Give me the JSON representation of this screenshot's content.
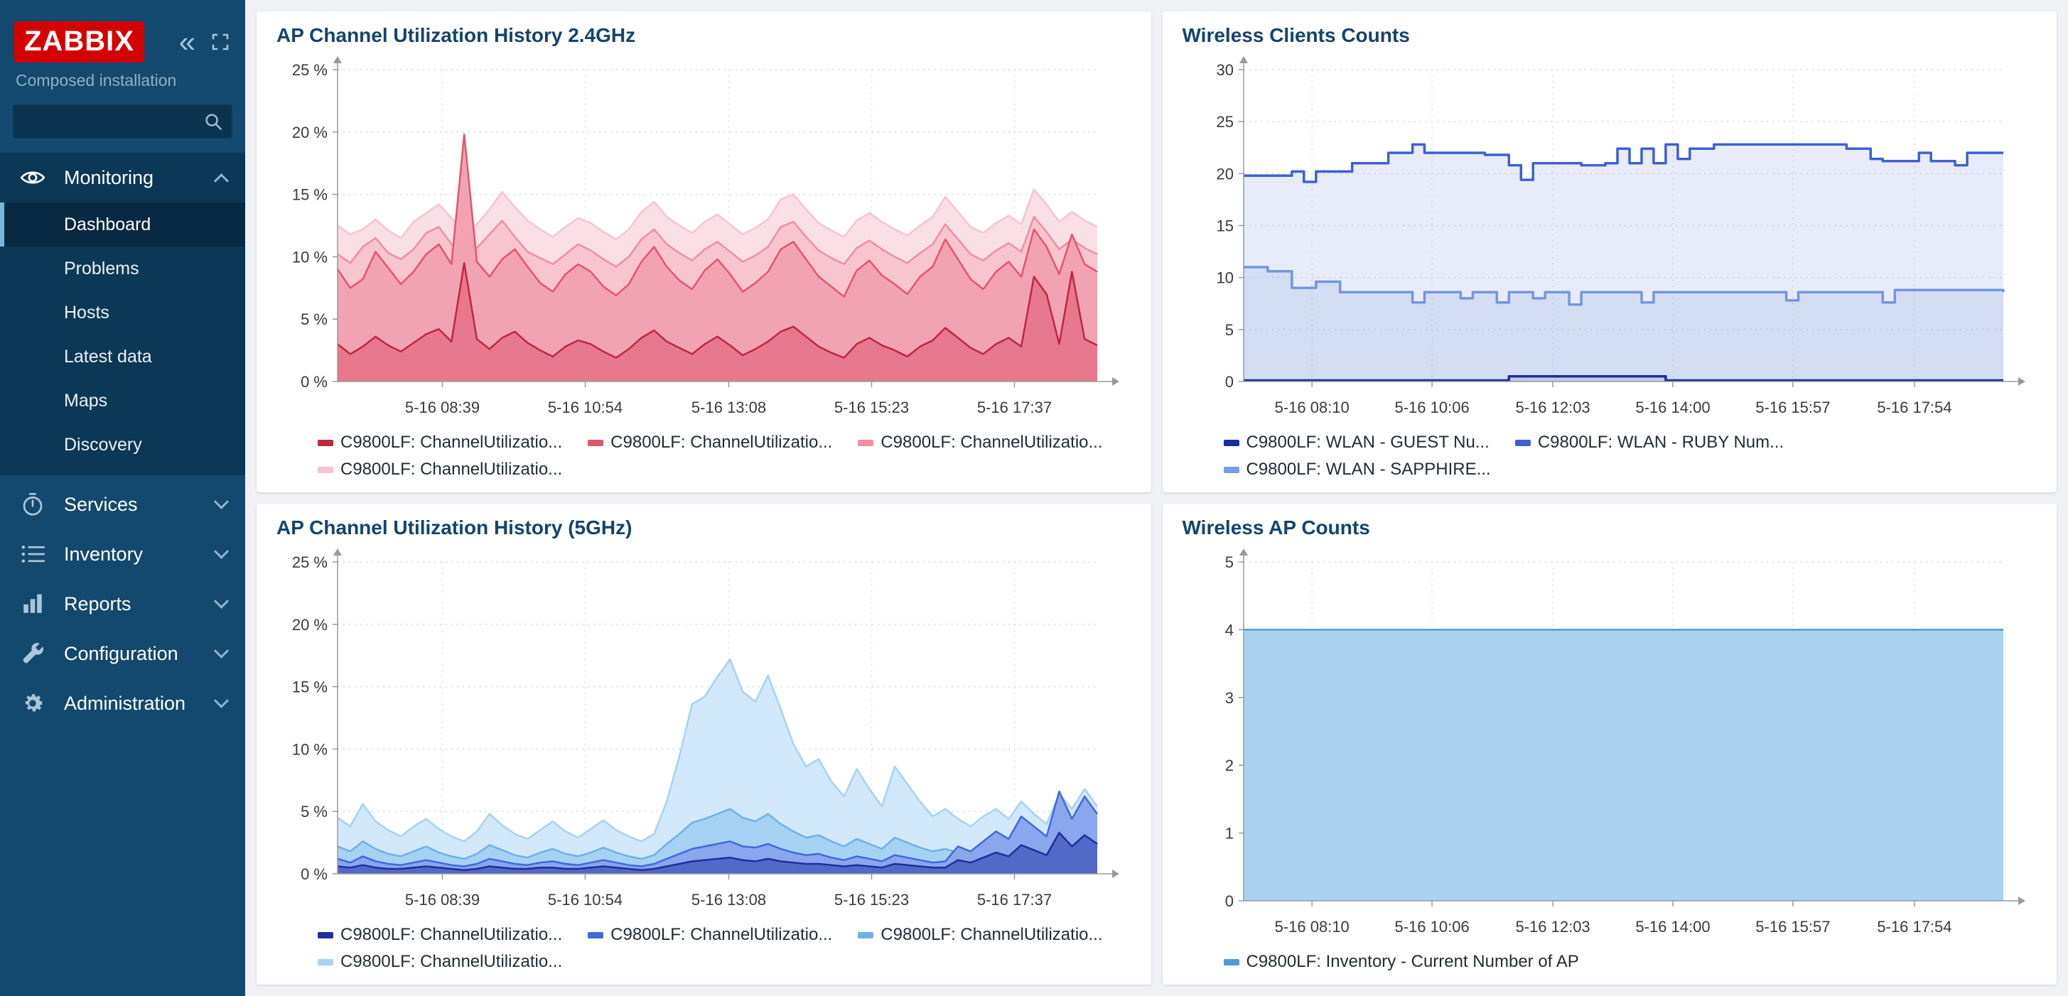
{
  "sidebar": {
    "logo": "ZABBIX",
    "subtitle": "Composed installation",
    "search": {
      "value": "",
      "placeholder": ""
    },
    "menu": [
      {
        "label": "Monitoring",
        "icon": "eye-icon",
        "expanded": true,
        "items": [
          {
            "label": "Dashboard",
            "active": true
          },
          {
            "label": "Problems",
            "active": false
          },
          {
            "label": "Hosts",
            "active": false
          },
          {
            "label": "Latest data",
            "active": false
          },
          {
            "label": "Maps",
            "active": false
          },
          {
            "label": "Discovery",
            "active": false
          }
        ]
      },
      {
        "label": "Services",
        "icon": "services-icon",
        "expanded": false
      },
      {
        "label": "Inventory",
        "icon": "inventory-icon",
        "expanded": false
      },
      {
        "label": "Reports",
        "icon": "reports-icon",
        "expanded": false
      },
      {
        "label": "Configuration",
        "icon": "configuration-icon",
        "expanded": false
      },
      {
        "label": "Administration",
        "icon": "administration-icon",
        "expanded": false
      }
    ]
  },
  "colors": {
    "sidebar_bg": "#13496e",
    "sidebar_group_bg": "#0c3857",
    "sidebar_active_bg": "#072a42",
    "logo_red": "#d40000",
    "widget_title": "#16436e",
    "main_bg": "#eff1f4"
  },
  "chart_data": [
    {
      "type": "area",
      "title": "AP Channel Utilization History 2.4GHz",
      "ylim": [
        0,
        25
      ],
      "yticks": [
        0,
        5,
        10,
        15,
        20,
        25
      ],
      "y_suffix": " %",
      "grid": true,
      "legend_position": "bottom",
      "xticks": [
        {
          "label": "5-16 08:39",
          "pos": 0.138
        },
        {
          "label": "5-16 10:54",
          "pos": 0.326
        },
        {
          "label": "5-16 13:08",
          "pos": 0.515
        },
        {
          "label": "5-16 15:23",
          "pos": 0.703
        },
        {
          "label": "5-16 17:37",
          "pos": 0.891
        }
      ],
      "series": [
        {
          "name": "C9800LF: ChannelUtilizatio...",
          "color": "#bd2841",
          "fill": "#e8788e",
          "fill_opacity": 1,
          "values": [
            3.0,
            2.2,
            2.8,
            3.6,
            2.9,
            2.4,
            3.1,
            3.8,
            4.2,
            3.2,
            9.5,
            3.4,
            2.6,
            3.5,
            4.0,
            3.1,
            2.5,
            2.0,
            2.8,
            3.3,
            3.0,
            2.4,
            1.9,
            2.6,
            3.5,
            4.1,
            3.2,
            2.7,
            2.2,
            3.0,
            3.6,
            2.9,
            2.1,
            2.6,
            3.2,
            4.0,
            4.4,
            3.6,
            2.8,
            2.3,
            1.9,
            3.0,
            3.5,
            2.9,
            2.5,
            2.0,
            2.8,
            3.3,
            4.3,
            3.5,
            2.7,
            2.2,
            3.0,
            3.5,
            2.8,
            8.4,
            7.0,
            3.0,
            8.8,
            3.4,
            2.9
          ]
        },
        {
          "name": "C9800LF: ChannelUtilizatio...",
          "color": "#e4556d",
          "fill": "#f2a3b3",
          "fill_opacity": 1,
          "values": [
            9.0,
            7.5,
            8.2,
            10.4,
            9.1,
            7.8,
            8.8,
            10.2,
            11.0,
            9.4,
            19.8,
            9.6,
            8.4,
            9.8,
            10.6,
            9.2,
            7.9,
            7.2,
            8.6,
            9.4,
            8.8,
            7.6,
            6.9,
            7.8,
            9.6,
            10.8,
            9.2,
            8.1,
            7.4,
            8.9,
            9.8,
            8.6,
            7.2,
            7.9,
            8.8,
            10.6,
            11.2,
            9.8,
            8.4,
            7.6,
            6.8,
            8.9,
            9.7,
            8.5,
            7.8,
            7.0,
            8.4,
            9.2,
            11.4,
            9.8,
            8.2,
            7.4,
            8.8,
            9.6,
            8.4,
            12.2,
            10.8,
            8.6,
            11.8,
            9.4,
            8.8
          ]
        },
        {
          "name": "C9800LF: ChannelUtilizatio...",
          "color": "#ef8fa1",
          "fill": "#f7c4cf",
          "fill_opacity": 1,
          "values": [
            10.2,
            9.5,
            10.8,
            11.5,
            10.3,
            9.8,
            10.6,
            11.9,
            12.4,
            11.0,
            10.1,
            10.7,
            11.8,
            12.9,
            11.6,
            10.4,
            9.9,
            9.4,
            10.2,
            11.0,
            10.5,
            9.8,
            9.2,
            10.0,
            11.4,
            12.2,
            11.0,
            10.3,
            9.7,
            10.6,
            11.2,
            10.4,
            9.6,
            10.1,
            10.8,
            12.4,
            12.8,
            11.6,
            10.5,
            9.9,
            9.4,
            10.7,
            11.3,
            10.6,
            10.0,
            9.5,
            10.3,
            11.0,
            12.6,
            11.4,
            10.2,
            9.7,
            10.5,
            11.1,
            10.4,
            13.2,
            12.0,
            10.6,
            11.4,
            10.7,
            10.2
          ]
        },
        {
          "name": "C9800LF: ChannelUtilizatio...",
          "color": "#f6c4d1",
          "fill": "#fbdfe7",
          "fill_opacity": 1,
          "values": [
            12.5,
            11.8,
            12.2,
            13.0,
            12.1,
            11.5,
            12.8,
            13.5,
            14.2,
            13.1,
            12.0,
            12.6,
            13.8,
            15.2,
            14.0,
            12.9,
            12.2,
            11.6,
            12.4,
            13.1,
            12.7,
            12.0,
            11.4,
            12.2,
            13.6,
            14.4,
            13.2,
            12.5,
            11.9,
            12.8,
            13.4,
            12.6,
            11.8,
            12.3,
            13.0,
            14.6,
            15.0,
            13.8,
            12.7,
            12.1,
            11.6,
            12.9,
            13.5,
            12.8,
            12.2,
            11.7,
            12.5,
            13.2,
            14.8,
            13.6,
            12.4,
            11.9,
            12.7,
            13.3,
            12.6,
            15.4,
            14.2,
            12.8,
            13.6,
            12.9,
            12.4
          ]
        }
      ]
    },
    {
      "type": "line",
      "step": true,
      "title": "Wireless Clients Counts",
      "ylim": [
        0,
        30
      ],
      "yticks": [
        0,
        5,
        10,
        15,
        20,
        25,
        30
      ],
      "y_suffix": "",
      "grid": true,
      "legend_position": "bottom",
      "xticks": [
        {
          "label": "5-16 08:10",
          "pos": 0.09
        },
        {
          "label": "5-16 10:06",
          "pos": 0.248
        },
        {
          "label": "5-16 12:03",
          "pos": 0.407
        },
        {
          "label": "5-16 14:00",
          "pos": 0.565
        },
        {
          "label": "5-16 15:57",
          "pos": 0.723
        },
        {
          "label": "5-16 17:54",
          "pos": 0.883
        }
      ],
      "series": [
        {
          "name": "C9800LF: WLAN - GUEST Nu...",
          "color": "#1a2f9c",
          "fill": "#1a2f9c",
          "fill_opacity": 0.1,
          "values": [
            0.1,
            0.1,
            0.1,
            0.1,
            0.1,
            0.1,
            0.1,
            0.1,
            0.1,
            0.1,
            0.1,
            0.1,
            0.1,
            0.1,
            0.1,
            0.1,
            0.1,
            0.1,
            0.1,
            0.1,
            0.1,
            0.1,
            0.5,
            0.5,
            0.5,
            0.5,
            0.5,
            0.5,
            0.5,
            0.5,
            0.5,
            0.5,
            0.5,
            0.5,
            0.5,
            0.1,
            0.1,
            0.1,
            0.1,
            0.1,
            0.1,
            0.1,
            0.1,
            0.1,
            0.1,
            0.1,
            0.1,
            0.1,
            0.1,
            0.1,
            0.1,
            0.1,
            0.1,
            0.1,
            0.1,
            0.1,
            0.1,
            0.1,
            0.1,
            0.1,
            0.1,
            0.1,
            0.1,
            0.1
          ]
        },
        {
          "name": "C9800LF: WLAN - RUBY Num...",
          "color": "#3f5fd6",
          "fill": "#3f5fd6",
          "fill_opacity": 0.12,
          "values": [
            19.8,
            19.8,
            19.8,
            19.8,
            20.2,
            19.2,
            20.2,
            20.2,
            20.2,
            21.0,
            21.0,
            21.0,
            22.0,
            22.0,
            22.8,
            22.0,
            22.0,
            22.0,
            22.0,
            22.0,
            21.8,
            21.8,
            20.8,
            19.4,
            21.0,
            21.0,
            21.0,
            21.0,
            20.8,
            20.8,
            21.0,
            22.4,
            21.0,
            22.4,
            21.0,
            22.8,
            21.4,
            22.4,
            22.4,
            22.8,
            22.8,
            22.8,
            22.8,
            22.8,
            22.8,
            22.8,
            22.8,
            22.8,
            22.8,
            22.8,
            22.4,
            22.4,
            21.4,
            21.2,
            21.2,
            21.2,
            22.0,
            21.2,
            21.2,
            20.8,
            22.0,
            22.0,
            22.0,
            22.0
          ]
        },
        {
          "name": "C9800LF: WLAN - SAPPHIRE...",
          "color": "#7b9fe0",
          "fill": "#7b9fe0",
          "fill_opacity": 0.18,
          "values": [
            11.0,
            11.0,
            10.6,
            10.6,
            9.0,
            9.0,
            9.6,
            9.6,
            8.6,
            8.6,
            8.6,
            8.6,
            8.6,
            8.6,
            7.6,
            8.6,
            8.6,
            8.6,
            8.0,
            8.6,
            8.6,
            7.6,
            8.6,
            8.6,
            8.0,
            8.6,
            8.6,
            7.4,
            8.6,
            8.6,
            8.6,
            8.6,
            8.6,
            7.6,
            8.6,
            8.6,
            8.6,
            8.6,
            8.6,
            8.6,
            8.6,
            8.6,
            8.6,
            8.6,
            8.6,
            7.8,
            8.6,
            8.6,
            8.6,
            8.6,
            8.6,
            8.6,
            8.6,
            7.6,
            8.8,
            8.8,
            8.8,
            8.8,
            8.8,
            8.8,
            8.8,
            8.8,
            8.8,
            8.6
          ]
        }
      ]
    },
    {
      "type": "area",
      "title": "AP Channel Utilization History (5GHz)",
      "ylim": [
        0,
        25
      ],
      "yticks": [
        0,
        5,
        10,
        15,
        20,
        25
      ],
      "y_suffix": " %",
      "grid": true,
      "legend_position": "bottom",
      "xticks": [
        {
          "label": "5-16 08:39",
          "pos": 0.138
        },
        {
          "label": "5-16 10:54",
          "pos": 0.326
        },
        {
          "label": "5-16 13:08",
          "pos": 0.515
        },
        {
          "label": "5-16 15:23",
          "pos": 0.703
        },
        {
          "label": "5-16 17:37",
          "pos": 0.891
        }
      ],
      "series": [
        {
          "name": "C9800LF: ChannelUtilizatio...",
          "color": "#1d2f9e",
          "fill": "#5468c8",
          "fill_opacity": 1,
          "values": [
            0.6,
            0.5,
            0.7,
            0.5,
            0.4,
            0.4,
            0.5,
            0.6,
            0.5,
            0.4,
            0.3,
            0.4,
            0.6,
            0.5,
            0.4,
            0.4,
            0.5,
            0.5,
            0.4,
            0.4,
            0.5,
            0.6,
            0.5,
            0.4,
            0.3,
            0.4,
            0.6,
            0.8,
            1.0,
            1.1,
            1.2,
            1.3,
            1.1,
            1.0,
            1.2,
            1.0,
            0.9,
            0.8,
            0.8,
            0.7,
            0.6,
            0.7,
            0.6,
            0.5,
            0.8,
            0.7,
            0.6,
            0.5,
            0.5,
            1.1,
            0.9,
            1.3,
            1.7,
            1.4,
            2.3,
            1.9,
            1.5,
            3.3,
            2.2,
            3.1,
            2.4
          ]
        },
        {
          "name": "C9800LF: ChannelUtilizatio...",
          "color": "#3f6ad9",
          "fill": "#8aa6ec",
          "fill_opacity": 1,
          "values": [
            1.2,
            0.9,
            1.4,
            1.0,
            0.8,
            0.7,
            0.9,
            1.1,
            0.9,
            0.7,
            0.6,
            0.8,
            1.2,
            1.0,
            0.8,
            0.7,
            0.9,
            1.0,
            0.8,
            0.7,
            0.9,
            1.1,
            0.9,
            0.7,
            0.6,
            0.8,
            1.2,
            1.6,
            2.0,
            2.2,
            2.4,
            2.6,
            2.2,
            2.1,
            2.4,
            2.0,
            1.7,
            1.5,
            1.6,
            1.3,
            1.1,
            1.4,
            1.2,
            1.0,
            1.5,
            1.3,
            1.1,
            0.9,
            1.0,
            2.2,
            1.8,
            2.6,
            3.4,
            2.8,
            4.6,
            3.8,
            3.0,
            6.6,
            4.4,
            6.2,
            4.8
          ]
        },
        {
          "name": "C9800LF: ChannelUtilizatio...",
          "color": "#6fb1ea",
          "fill": "#a6d2f4",
          "fill_opacity": 1,
          "values": [
            2.2,
            1.8,
            2.6,
            2.0,
            1.6,
            1.4,
            1.8,
            2.2,
            1.7,
            1.4,
            1.2,
            1.6,
            2.3,
            1.9,
            1.5,
            1.3,
            1.7,
            2.0,
            1.6,
            1.4,
            1.7,
            2.1,
            1.7,
            1.4,
            1.2,
            1.5,
            2.4,
            3.2,
            4.1,
            4.4,
            4.8,
            5.2,
            4.5,
            4.2,
            4.8,
            4.0,
            3.4,
            2.9,
            3.1,
            2.6,
            2.2,
            2.8,
            2.4,
            2.0,
            2.9,
            2.5,
            2.1,
            1.8,
            2.0,
            1.7,
            1.5,
            1.8,
            2.0,
            1.7,
            2.2,
            1.9,
            1.6,
            2.4,
            2.0,
            2.6,
            2.1
          ]
        },
        {
          "name": "C9800LF: ChannelUtilizatio...",
          "color": "#a5d3f3",
          "fill": "#d2e9fb",
          "fill_opacity": 1,
          "values": [
            4.5,
            3.8,
            5.6,
            4.2,
            3.5,
            3.0,
            3.8,
            4.4,
            3.6,
            3.0,
            2.6,
            3.4,
            4.8,
            3.9,
            3.2,
            2.8,
            3.5,
            4.2,
            3.4,
            2.9,
            3.6,
            4.3,
            3.5,
            3.0,
            2.6,
            3.2,
            5.8,
            9.4,
            13.6,
            14.2,
            15.8,
            17.2,
            14.6,
            13.8,
            15.9,
            13.2,
            10.4,
            8.6,
            9.2,
            7.4,
            6.2,
            8.4,
            6.8,
            5.4,
            8.6,
            7.2,
            5.8,
            4.6,
            5.2,
            4.4,
            3.8,
            4.6,
            5.2,
            4.4,
            5.8,
            4.8,
            4.0,
            6.4,
            5.2,
            6.8,
            5.4
          ]
        }
      ]
    },
    {
      "type": "area",
      "title": "Wireless AP Counts",
      "ylim": [
        0,
        5
      ],
      "yticks": [
        0,
        1,
        2,
        3,
        4,
        5
      ],
      "y_suffix": "",
      "grid": true,
      "legend_position": "bottom",
      "xticks": [
        {
          "label": "5-16 08:10",
          "pos": 0.09
        },
        {
          "label": "5-16 10:06",
          "pos": 0.248
        },
        {
          "label": "5-16 12:03",
          "pos": 0.407
        },
        {
          "label": "5-16 14:00",
          "pos": 0.565
        },
        {
          "label": "5-16 15:57",
          "pos": 0.723
        },
        {
          "label": "5-16 17:54",
          "pos": 0.883
        }
      ],
      "series": [
        {
          "name": "C9800LF: Inventory - Current Number of AP",
          "color": "#4f9ad8",
          "fill": "#a9d3ef",
          "fill_opacity": 1,
          "values": [
            4,
            4,
            4,
            4,
            4,
            4,
            4,
            4,
            4,
            4,
            4,
            4,
            4
          ]
        }
      ]
    }
  ]
}
